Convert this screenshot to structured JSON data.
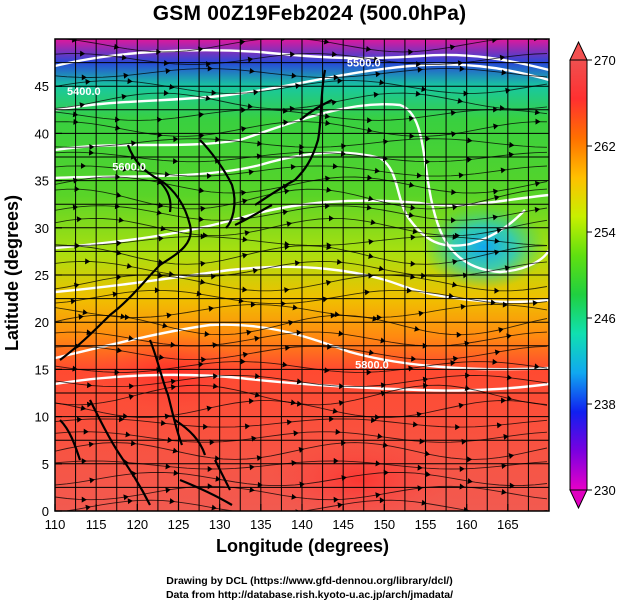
{
  "title": "GSM 00Z19Feb2024 (500.0hPa)",
  "xlabel": "Longitude (degrees)",
  "ylabel": "Latitude  (degrees)",
  "x_ticks": [
    110,
    115,
    120,
    125,
    130,
    135,
    140,
    145,
    150,
    155,
    160,
    165
  ],
  "y_ticks": [
    0,
    5,
    10,
    15,
    20,
    25,
    30,
    35,
    40,
    45
  ],
  "x_range": [
    110,
    170
  ],
  "y_range": [
    0,
    50
  ],
  "colorbar": {
    "ticks": [
      230,
      238,
      246,
      254,
      262,
      270
    ],
    "range": [
      230,
      270
    ],
    "colors": [
      "#e800c8",
      "#7a00e0",
      "#1020f0",
      "#10a8f0",
      "#10e0b0",
      "#20d040",
      "#60e010",
      "#c8f000",
      "#ffc000",
      "#ff7000",
      "#ff3030",
      "#f05050"
    ]
  },
  "contours": [
    {
      "label": "5500.0",
      "lon": 147.5,
      "lat": 47.5
    },
    {
      "label": "5400.0",
      "lon": 113.5,
      "lat": 44.5
    },
    {
      "label": "5600.0",
      "lon": 119.0,
      "lat": 36.5
    },
    {
      "label": "5800.0",
      "lon": 148.5,
      "lat": 15.5
    }
  ],
  "credit_line1": "Drawing by DCL (https://www.gfd-dennou.org/library/dcl/)",
  "credit_line2": "Data from http://database.rish.kyoto-u.ac.jp/arch/jmadata/",
  "colors": {
    "grid": "#000000",
    "contour": "#ffffff",
    "coast": "#000000"
  }
}
